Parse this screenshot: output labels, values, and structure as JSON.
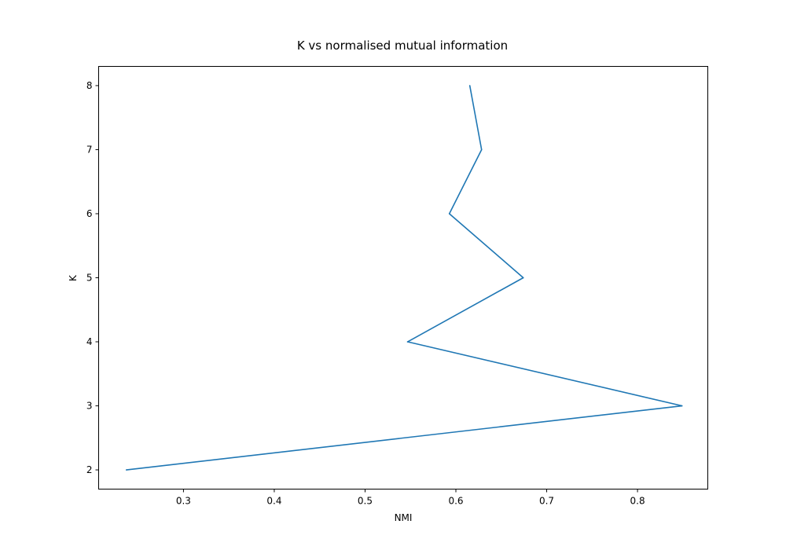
{
  "chart_data": {
    "type": "line",
    "title": "K vs normalised mutual information",
    "xlabel": "NMI",
    "ylabel": "K",
    "xlim": [
      0.2066,
      0.8774
    ],
    "ylim": [
      1.7,
      8.3
    ],
    "xticks": [
      0.3,
      0.4,
      0.5,
      0.6,
      0.7,
      0.8
    ],
    "xtick_labels": [
      "0.3",
      "0.4",
      "0.5",
      "0.6",
      "0.7",
      "0.8"
    ],
    "yticks": [
      2,
      3,
      4,
      5,
      6,
      7,
      8
    ],
    "ytick_labels": [
      "2",
      "3",
      "4",
      "5",
      "6",
      "7",
      "8"
    ],
    "grid": false,
    "series": [
      {
        "color": "#1f77b4",
        "x": [
          0.2371,
          0.849,
          0.5468,
          0.6742,
          0.5928,
          0.6283,
          0.6153
        ],
        "y": [
          2,
          3,
          4,
          5,
          6,
          7,
          8
        ]
      }
    ]
  }
}
